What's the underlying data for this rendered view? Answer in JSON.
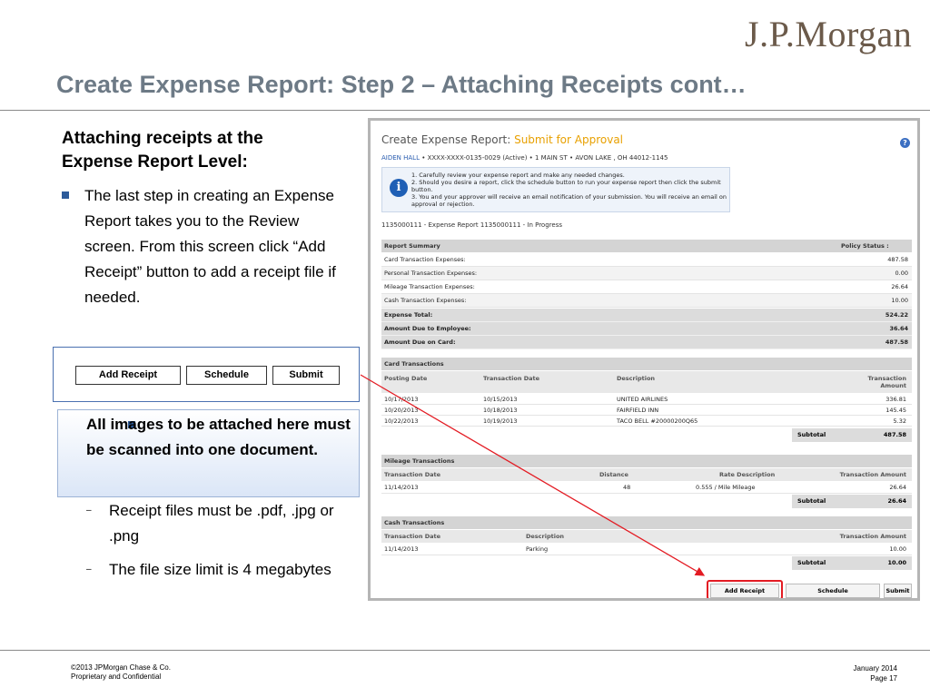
{
  "brand": {
    "logo_text": "J.P.Morgan"
  },
  "slide": {
    "title": "Create Expense Report: Step 2 – Attaching Receipts cont…",
    "heading": "Attaching receipts at the Expense Report Level:",
    "bullet1": "The last step in creating an Expense Report takes you to the Review screen.   From this screen  click “Add Receipt” button to add a receipt file if needed.",
    "bullet2": "All images to be attached here must be scanned into one document.",
    "sub1": "Receipt files must be .pdf, .jpg or .png",
    "sub2": "The file size limit is 4 megabytes"
  },
  "button_preview": {
    "add_receipt": "Add Receipt",
    "schedule": "Schedule",
    "submit": "Submit"
  },
  "screenshot": {
    "title_prefix": "Create Expense Report:",
    "title_accent": "Submit for Approval",
    "account_name": "AIDEN HALL",
    "account_rest": " • XXXX-XXXX-0135-0029 (Active)  • 1 MAIN ST • AVON LAKE , OH 44012-1145",
    "info_lines": [
      "1.  Carefully review your expense report and make any needed changes.",
      "2.  Should you desire a report, click the schedule button to run your expense report then click the submit button.",
      "3.  You and your approver will receive an email notification of your submission.  You will receive an email on approval or rejection."
    ],
    "report_line": "1135000111 - Expense Report 1135000111 - In Progress",
    "summary": {
      "header": "Report Summary",
      "policy_header": "Policy Status :",
      "rows": [
        {
          "label": "Card Transaction Expenses:",
          "value": "487.58"
        },
        {
          "label": "Personal Transaction Expenses:",
          "value": "0.00"
        },
        {
          "label": "Mileage Transaction Expenses:",
          "value": "26.64"
        },
        {
          "label": "Cash Transaction Expenses:",
          "value": "10.00"
        }
      ],
      "totals": [
        {
          "label": "Expense Total:",
          "value": "524.22"
        },
        {
          "label": "Amount Due to Employee:",
          "value": "36.64"
        },
        {
          "label": "Amount Due on Card:",
          "value": "487.58"
        }
      ]
    },
    "card": {
      "header": "Card Transactions",
      "columns": [
        "Posting Date",
        "Transaction Date",
        "Description",
        "Transaction Amount"
      ],
      "rows": [
        [
          "10/17/2013",
          "10/15/2013",
          "UNITED AIRLINES",
          "336.81"
        ],
        [
          "10/20/2013",
          "10/18/2013",
          "FAIRFIELD INN",
          "145.45"
        ],
        [
          "10/22/2013",
          "10/19/2013",
          "TACO BELL #20000200Q65",
          "5.32"
        ]
      ],
      "subtotal_label": "Subtotal",
      "subtotal": "487.58"
    },
    "mileage": {
      "header": "Mileage Transactions",
      "columns": [
        "Transaction Date",
        "Distance",
        "Rate  Description",
        "Transaction Amount"
      ],
      "rows": [
        [
          "11/14/2013",
          "48",
          "0.555 / Mile Mileage",
          "26.64"
        ]
      ],
      "subtotal_label": "Subtotal",
      "subtotal": "26.64"
    },
    "cash": {
      "header": "Cash Transactions",
      "columns": [
        "Transaction Date",
        "Description",
        "Transaction Amount"
      ],
      "rows": [
        [
          "11/14/2013",
          "Parking",
          "10.00"
        ]
      ],
      "subtotal_label": "Subtotal",
      "subtotal": "10.00"
    },
    "buttons": {
      "add_receipt": "Add Receipt",
      "schedule": "Schedule",
      "submit": "Submit"
    }
  },
  "footer": {
    "copyright": "©2013 JPMorgan Chase & Co.",
    "confidential": "Proprietary and Confidential",
    "date": "January 2014",
    "page": "Page 17"
  },
  "colors": {
    "title": "#6d7a86",
    "bullet": "#2d5b9a",
    "accent": "#e8a000",
    "highlight": "#e31b23"
  }
}
